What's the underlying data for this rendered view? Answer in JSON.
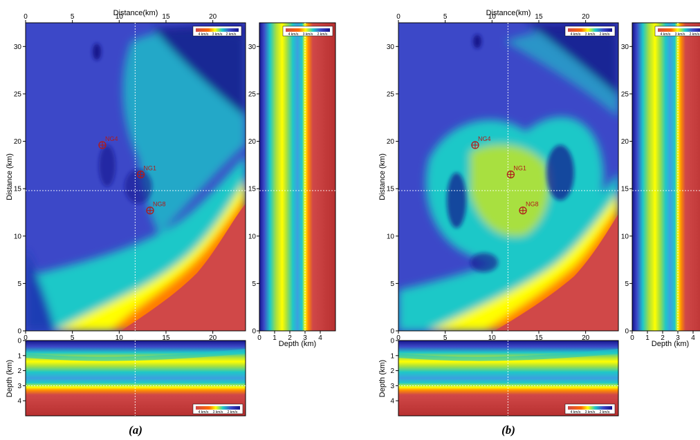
{
  "chart_data": [
    {
      "panel": "a",
      "caption": "(a)",
      "type": "heatmap",
      "map_view": {
        "xlabel": "Distance(km)",
        "ylabel": "Distance (km)",
        "xlim": [
          0,
          23.5
        ],
        "ylim": [
          0,
          32.5
        ],
        "xticks": [
          0,
          5,
          10,
          15,
          20
        ],
        "yticks": [
          0,
          5,
          10,
          15,
          20,
          25,
          30
        ],
        "crosshair": {
          "x": 11.7,
          "y": 14.8
        },
        "wells": [
          {
            "name": "NG4",
            "x": 8.2,
            "y": 19.6
          },
          {
            "name": "NG1",
            "x": 12.3,
            "y": 16.5
          },
          {
            "name": "NG8",
            "x": 13.3,
            "y": 12.7
          }
        ]
      },
      "vertical_section": {
        "xlabel": "Depth (km)",
        "xlim": [
          0,
          5
        ],
        "xticks": [
          0,
          1,
          2,
          3,
          4
        ],
        "crosshair_depth": 3.0
      },
      "horizontal_section": {
        "ylabel": "Depth (km)",
        "ylim": [
          0,
          5
        ],
        "yticks": [
          0,
          1,
          2,
          3,
          4
        ],
        "crosshair_depth": 3.0
      },
      "colorbar": {
        "labels": [
          "4 km/s",
          "3 km/s",
          "2 km/s"
        ],
        "colors": [
          "#d04848",
          "#ffff00",
          "#1ec8c8",
          "#3c48c8",
          "#14148c"
        ]
      }
    },
    {
      "panel": "b",
      "caption": "(b)",
      "type": "heatmap",
      "map_view": {
        "xlabel": "Distance(km)",
        "ylabel": "Distance (km)",
        "xlim": [
          0,
          23.5
        ],
        "ylim": [
          0,
          32.5
        ],
        "xticks": [
          0,
          5,
          10,
          15,
          20
        ],
        "yticks": [
          0,
          5,
          10,
          15,
          20,
          25,
          30
        ],
        "crosshair": {
          "x": 11.7,
          "y": 14.8
        },
        "wells": [
          {
            "name": "NG4",
            "x": 8.2,
            "y": 19.6
          },
          {
            "name": "NG1",
            "x": 12.0,
            "y": 16.5
          },
          {
            "name": "NG8",
            "x": 13.3,
            "y": 12.7
          }
        ]
      },
      "vertical_section": {
        "xlabel": "Depth (km)",
        "xlim": [
          0,
          5
        ],
        "xticks": [
          0,
          1,
          2,
          3,
          4
        ],
        "crosshair_depth": 3.0
      },
      "horizontal_section": {
        "ylabel": "Depth (km)",
        "ylim": [
          0,
          5
        ],
        "yticks": [
          0,
          1,
          2,
          3,
          4
        ],
        "crosshair_depth": 3.0
      },
      "colorbar": {
        "labels": [
          "4 km/s",
          "3 km/s",
          "2 km/s"
        ],
        "colors": [
          "#d04848",
          "#ffff00",
          "#1ec8c8",
          "#3c48c8",
          "#14148c"
        ]
      }
    }
  ]
}
